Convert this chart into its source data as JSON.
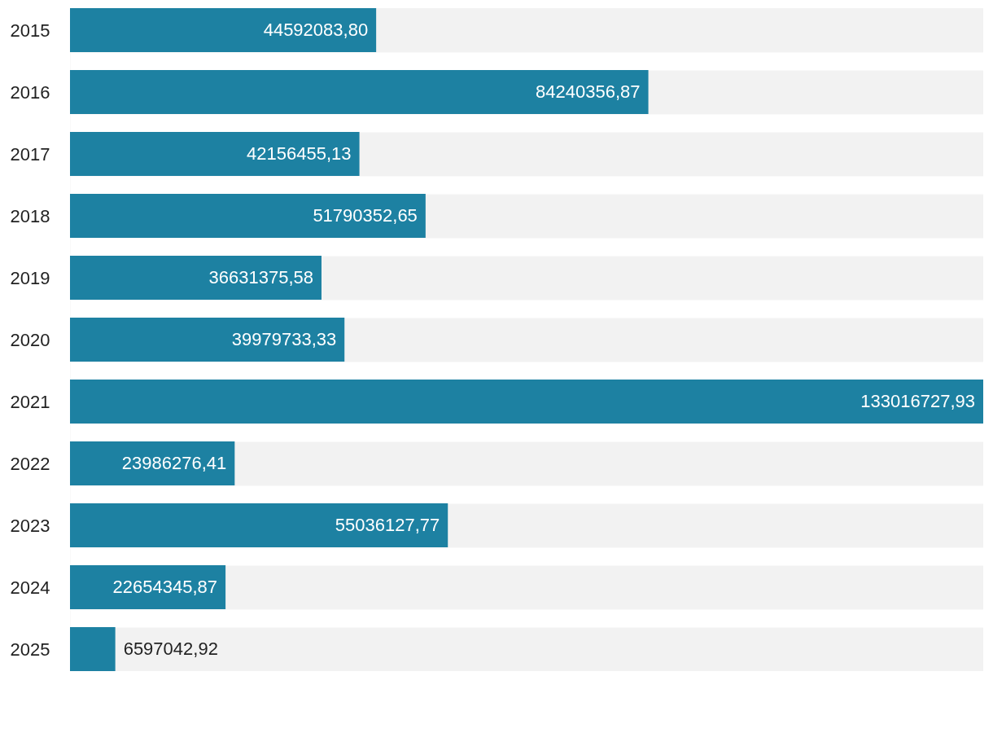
{
  "chart_data": {
    "type": "bar",
    "orientation": "horizontal",
    "categories": [
      "2015",
      "2016",
      "2017",
      "2018",
      "2019",
      "2020",
      "2021",
      "2022",
      "2023",
      "2024",
      "2025"
    ],
    "values": [
      44592083.8,
      84240356.87,
      42156455.13,
      51790352.65,
      36631375.58,
      39979733.33,
      133016727.93,
      23986276.41,
      55036127.77,
      22654345.87,
      6597042.92
    ],
    "value_labels": [
      "44592083,80",
      "84240356,87",
      "42156455,13",
      "51790352,65",
      "36631375,58",
      "39979733,33",
      "133016727,93",
      "23986276,41",
      "55036127,77",
      "22654345,87",
      "6597042,92"
    ],
    "color": "#1d81a2",
    "grid": "y",
    "xlim": [
      0,
      133016727.93
    ]
  }
}
